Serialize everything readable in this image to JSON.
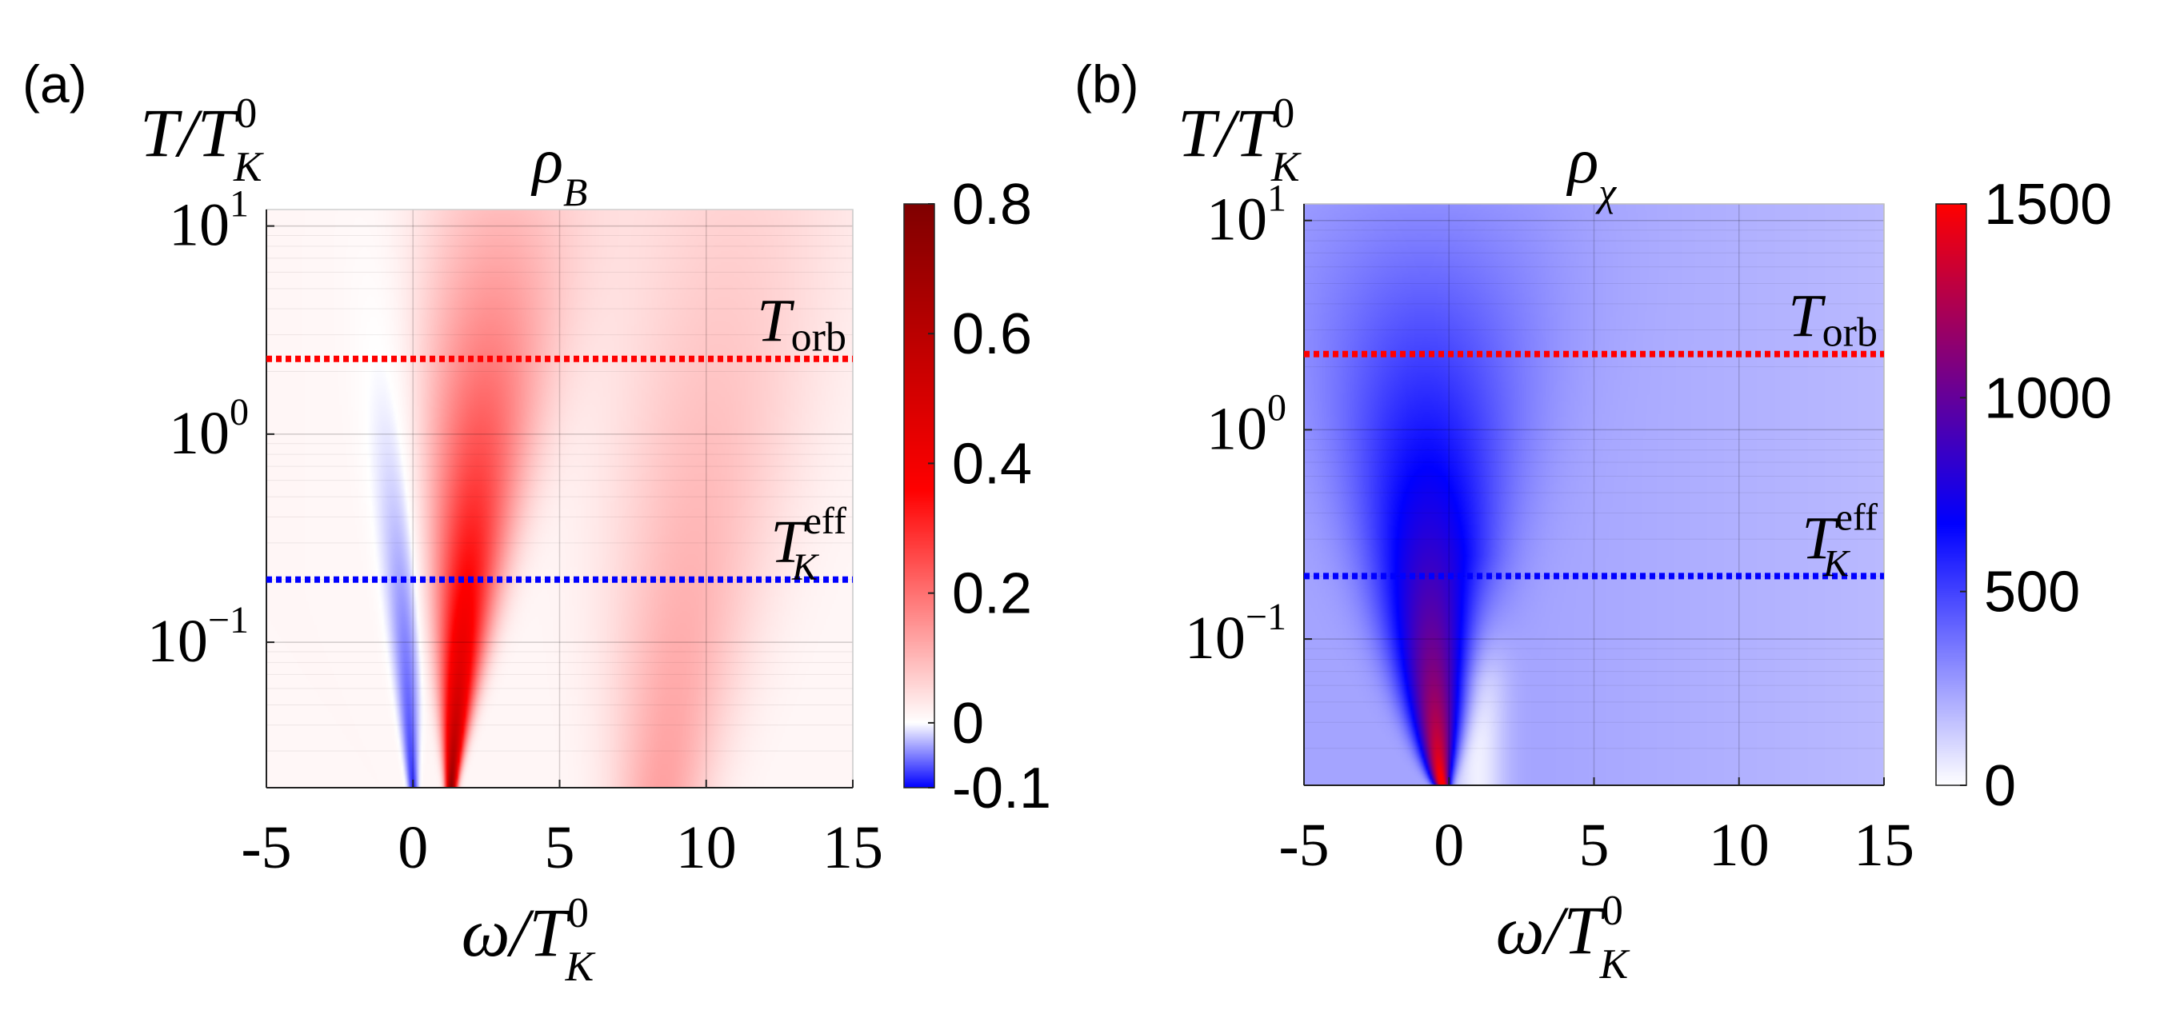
{
  "chart_data": [
    {
      "type": "heatmap",
      "panel_label": "(a)",
      "title": "ρ_B",
      "title_main": "ρ",
      "title_sub": "B",
      "ylabel_main": "T/T",
      "ylabel_sup": "0",
      "ylabel_sub": "K",
      "xlabel_main": "ω/T",
      "xlabel_sup": "0",
      "xlabel_sub": "K",
      "xlim": [
        -5,
        15
      ],
      "ylim": [
        0.02,
        12
      ],
      "yscale": "log",
      "x_ticks": [
        -5,
        0,
        5,
        10,
        15
      ],
      "x_tick_labels": [
        "-5",
        "0",
        "5",
        "10",
        "15"
      ],
      "y_ticks": [
        {
          "value": 10,
          "base": "10",
          "exp": "1"
        },
        {
          "value": 1,
          "base": "10",
          "exp": "0"
        },
        {
          "value": 0.1,
          "base": "10",
          "exp": "−1"
        }
      ],
      "grid": true,
      "colorbar": {
        "min": -0.1,
        "max": 0.8,
        "ticks": [
          -0.1,
          0,
          0.2,
          0.4,
          0.6,
          0.8
        ],
        "tick_labels": [
          "-0.1",
          "0",
          "0.2",
          "0.4",
          "0.6",
          "0.8"
        ],
        "colors": [
          "#0000ff",
          "#ffffff",
          "#ff0000",
          "#800000"
        ]
      },
      "reference_lines": [
        {
          "name": "T_orb",
          "label_main": "T",
          "label_sub": "orb",
          "label_sup": "",
          "y": 2.3,
          "color": "#ff0000"
        },
        {
          "name": "T_K^eff",
          "label_main": "T",
          "label_sub": "K",
          "label_sup": "eff",
          "y": 0.2,
          "color": "#0000ff"
        }
      ],
      "features": [
        {
          "name": "negative peak",
          "x_at_low_T": 0.0,
          "x_at_high_T": -0.9,
          "value": -0.1
        },
        {
          "name": "Kondo peak",
          "x_at_low_T": 1.3,
          "x_at_high_T": 3.0,
          "value": 0.8
        },
        {
          "name": "high-energy band",
          "x_at_low_T": 8.5,
          "x_at_high_T": 11.0,
          "value": 0.12
        }
      ]
    },
    {
      "type": "heatmap",
      "panel_label": "(b)",
      "title": "ρ_χ",
      "title_main": "ρ",
      "title_sub": "χ",
      "ylabel_main": "T/T",
      "ylabel_sup": "0",
      "ylabel_sub": "K",
      "xlabel_main": "ω/T",
      "xlabel_sup": "0",
      "xlabel_sub": "K",
      "xlim": [
        -5,
        15
      ],
      "ylim": [
        0.02,
        12
      ],
      "yscale": "log",
      "x_ticks": [
        -5,
        0,
        5,
        10,
        15
      ],
      "x_tick_labels": [
        "-5",
        "0",
        "5",
        "10",
        "15"
      ],
      "y_ticks": [
        {
          "value": 10,
          "base": "10",
          "exp": "1"
        },
        {
          "value": 1,
          "base": "10",
          "exp": "0"
        },
        {
          "value": 0.1,
          "base": "10",
          "exp": "−1"
        }
      ],
      "grid": true,
      "colorbar": {
        "min": 0,
        "max": 1500,
        "ticks": [
          0,
          500,
          1000,
          1500
        ],
        "tick_labels": [
          "0",
          "500",
          "1000",
          "1500"
        ],
        "colors": [
          "#ffffff",
          "#0000ff",
          "#ff0000"
        ]
      },
      "reference_lines": [
        {
          "name": "T_orb",
          "label_main": "T",
          "label_sub": "orb",
          "label_sup": "",
          "y": 2.3,
          "color": "#ff0000"
        },
        {
          "name": "T_K^eff",
          "label_main": "T",
          "label_sub": "K",
          "label_sup": "eff",
          "y": 0.2,
          "color": "#0000ff"
        }
      ],
      "features": [
        {
          "name": "main peak",
          "x_at_low_T": -0.2,
          "x_at_high_T": -0.9,
          "value": 1500
        },
        {
          "name": "background",
          "value": 220
        }
      ]
    }
  ]
}
